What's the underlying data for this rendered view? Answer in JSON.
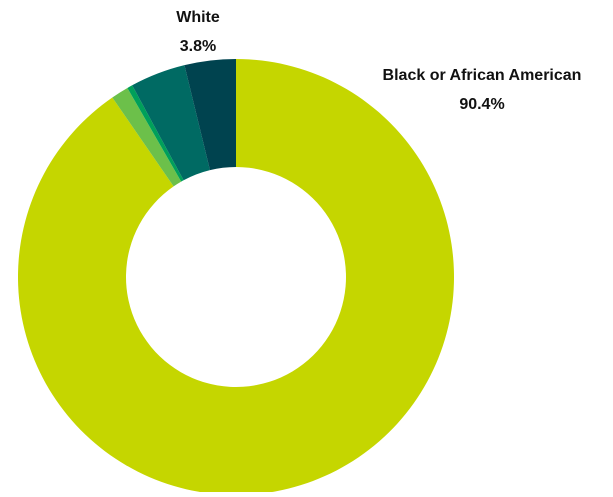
{
  "chart_data": {
    "type": "pie",
    "variant": "donut",
    "slices": [
      {
        "label": "Black or African American",
        "value": 90.4,
        "color": "#c5d600",
        "show_label": true
      },
      {
        "label": "",
        "value": 1.3,
        "color": "#6cc04a",
        "show_label": false
      },
      {
        "label": "",
        "value": 0.4,
        "color": "#00a05a",
        "show_label": false
      },
      {
        "label": "",
        "value": 4.1,
        "color": "#006a63",
        "show_label": false
      },
      {
        "label": "White",
        "value": 3.8,
        "color": "#00434f",
        "show_label": true
      }
    ],
    "value_format": "{v}%"
  }
}
